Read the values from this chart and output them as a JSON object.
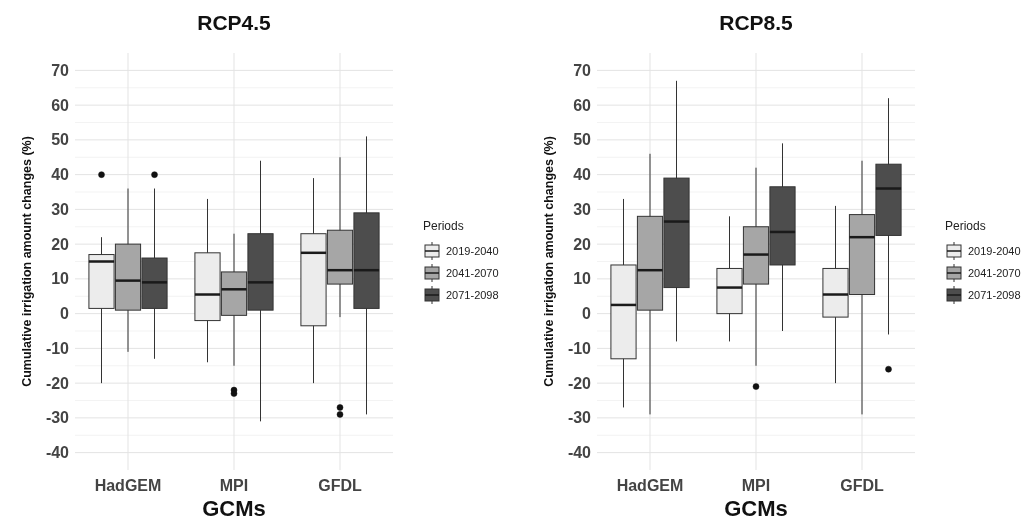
{
  "chart_data": [
    {
      "type": "box",
      "title": "RCP4.5",
      "xlabel": "GCMs",
      "ylabel": "Cumulative irrigation amount changes (%)",
      "legend_title": "Periods",
      "legend": "right",
      "grid": true,
      "categories": [
        "HadGEM",
        "MPI",
        "GFDL"
      ],
      "ylim": [
        -45,
        75
      ],
      "yticks": [
        -40,
        -30,
        -20,
        -10,
        0,
        10,
        20,
        30,
        40,
        50,
        60,
        70
      ],
      "series": [
        {
          "name": "2019-2040",
          "color": "#ececec",
          "boxes": [
            {
              "low": -20,
              "q1": 1.5,
              "median": 15,
              "q3": 17,
              "high": 22,
              "outliers": [
                40
              ]
            },
            {
              "low": -14,
              "q1": -2,
              "median": 5.5,
              "q3": 17.5,
              "high": 33
            },
            {
              "low": -20,
              "q1": -3.5,
              "median": 17.5,
              "q3": 23,
              "high": 39
            }
          ]
        },
        {
          "name": "2041-2070",
          "color": "#a6a6a6",
          "boxes": [
            {
              "low": -11,
              "q1": 1,
              "median": 9.5,
              "q3": 20,
              "high": 36
            },
            {
              "low": -15,
              "q1": -0.5,
              "median": 7,
              "q3": 12,
              "high": 23,
              "outliers": [
                -22,
                -23
              ]
            },
            {
              "low": -1,
              "q1": 8.5,
              "median": 12.5,
              "q3": 24,
              "high": 45,
              "outliers": [
                -27,
                -29
              ]
            }
          ]
        },
        {
          "name": "2071-2098",
          "color": "#4d4d4d",
          "boxes": [
            {
              "low": -13,
              "q1": 1.5,
              "median": 9,
              "q3": 16,
              "high": 36,
              "outliers": [
                40
              ]
            },
            {
              "low": -31,
              "q1": 1,
              "median": 9,
              "q3": 23,
              "high": 44
            },
            {
              "low": -29,
              "q1": 1.5,
              "median": 12.5,
              "q3": 29,
              "high": 51
            }
          ]
        }
      ]
    },
    {
      "type": "box",
      "title": "RCP8.5",
      "xlabel": "GCMs",
      "ylabel": "Cumulative irrigation amount changes (%)",
      "legend_title": "Periods",
      "legend": "right",
      "grid": true,
      "categories": [
        "HadGEM",
        "MPI",
        "GFDL"
      ],
      "ylim": [
        -45,
        75
      ],
      "yticks": [
        -40,
        -30,
        -20,
        -10,
        0,
        10,
        20,
        30,
        40,
        50,
        60,
        70
      ],
      "series": [
        {
          "name": "2019-2040",
          "color": "#ececec",
          "boxes": [
            {
              "low": -27,
              "q1": -13,
              "median": 2.5,
              "q3": 14,
              "high": 33
            },
            {
              "low": -8,
              "q1": 0,
              "median": 7.5,
              "q3": 13,
              "high": 28
            },
            {
              "low": -20,
              "q1": -1,
              "median": 5.5,
              "q3": 13,
              "high": 31
            }
          ]
        },
        {
          "name": "2041-2070",
          "color": "#a6a6a6",
          "boxes": [
            {
              "low": -29,
              "q1": 1,
              "median": 12.5,
              "q3": 28,
              "high": 46
            },
            {
              "low": -15,
              "q1": 8.5,
              "median": 17,
              "q3": 25,
              "high": 42,
              "outliers": [
                -21
              ]
            },
            {
              "low": -29,
              "q1": 5.5,
              "median": 22,
              "q3": 28.5,
              "high": 44
            }
          ]
        },
        {
          "name": "2071-2098",
          "color": "#4d4d4d",
          "boxes": [
            {
              "low": -8,
              "q1": 7.5,
              "median": 26.5,
              "q3": 39,
              "high": 67
            },
            {
              "low": -5,
              "q1": 14,
              "median": 23.5,
              "q3": 36.5,
              "high": 49
            },
            {
              "low": -6,
              "q1": 22.5,
              "median": 36,
              "q3": 43,
              "high": 62,
              "outliers": [
                -16
              ]
            }
          ]
        }
      ]
    }
  ]
}
